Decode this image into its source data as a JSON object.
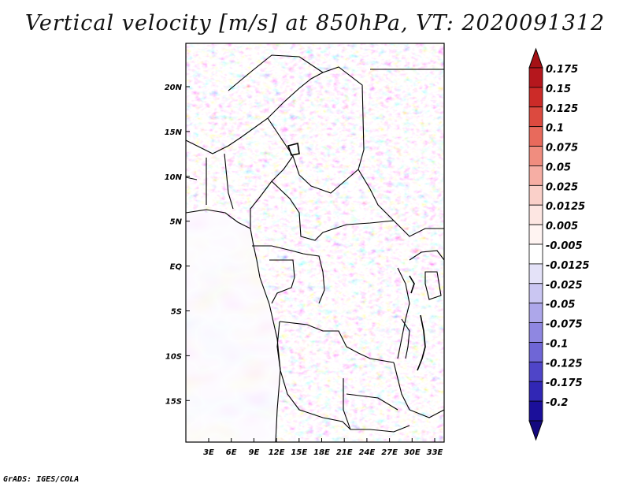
{
  "title": "Vertical velocity [m/s] at 850hPa, VT: 2020091312",
  "footer": "GrADS: IGES/COLA",
  "map": {
    "lat_labels": [
      "20N",
      "15N",
      "10N",
      "5N",
      "EQ",
      "5S",
      "10S",
      "15S"
    ],
    "lon_labels": [
      "3E",
      "6E",
      "9E",
      "12E",
      "15E",
      "18E",
      "21E",
      "24E",
      "27E",
      "30E",
      "33E"
    ]
  },
  "colorbar": {
    "levels": [
      {
        "label": "0.175",
        "color": "#b5171d"
      },
      {
        "label": "0.15",
        "color": "#cc2b28"
      },
      {
        "label": "0.125",
        "color": "#dc4a3f"
      },
      {
        "label": "0.1",
        "color": "#e86a5c"
      },
      {
        "label": "0.075",
        "color": "#f08d7f"
      },
      {
        "label": "0.05",
        "color": "#f6aea4"
      },
      {
        "label": "0.025",
        "color": "#fad0c9"
      },
      {
        "label": "0.0125",
        "color": "#fde6e2"
      },
      {
        "label": "0.005",
        "color": "#fff4f2"
      },
      {
        "label": "-0.005",
        "color": "#ffffff"
      },
      {
        "label": "-0.0125",
        "color": "#e4e2f8"
      },
      {
        "label": "-0.025",
        "color": "#cac6f2"
      },
      {
        "label": "-0.05",
        "color": "#ada7ea"
      },
      {
        "label": "-0.075",
        "color": "#8f87e1"
      },
      {
        "label": "-0.1",
        "color": "#6f66d6"
      },
      {
        "label": "-0.125",
        "color": "#4f45c8"
      },
      {
        "label": "-0.175",
        "color": "#3127b5"
      },
      {
        "label": "-0.2",
        "color": "#1b0f9a"
      }
    ],
    "top_arrow_color": "#a51115",
    "bottom_arrow_color": "#14087f"
  }
}
